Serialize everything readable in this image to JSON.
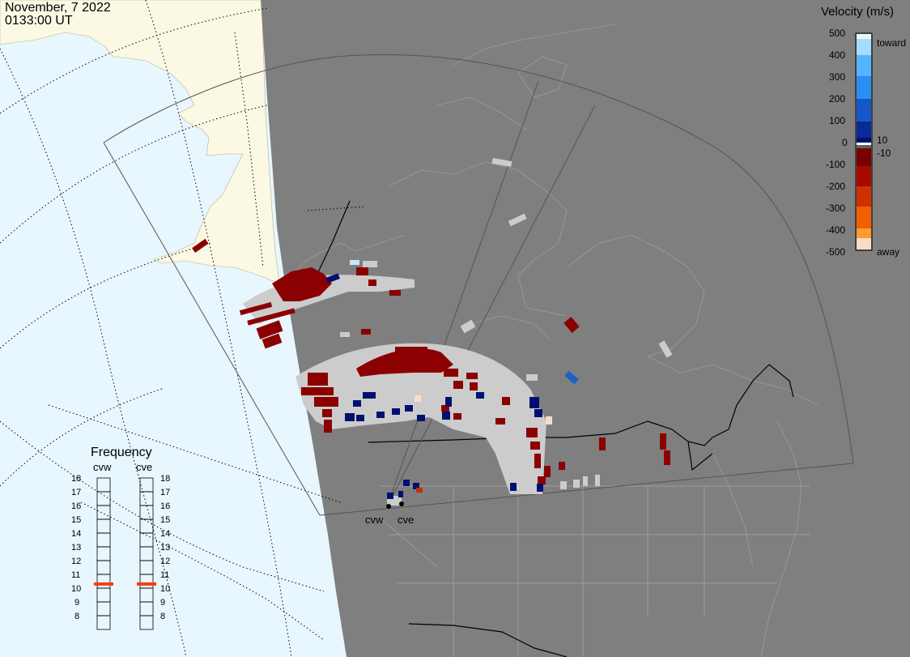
{
  "header": {
    "date": "November, 7 2022",
    "time": "0133:00 UT"
  },
  "colorbar": {
    "title": "Velocity (m/s)",
    "ticks": [
      "500",
      "400",
      "300",
      "200",
      "100",
      "0",
      "-100",
      "-200",
      "-300",
      "-400",
      "-500"
    ],
    "upper_near": "10",
    "lower_near": "-10",
    "toward_label": "toward",
    "away_label": "away",
    "colors": {
      "toward": [
        "#d8f0ff",
        "#80c8ff",
        "#3aa0f5",
        "#1e78e0",
        "#1050c0",
        "#0a2a95",
        "#001070"
      ],
      "away": [
        "#f8dcc8",
        "#ffb060",
        "#ff8c00",
        "#f06000",
        "#d03000",
        "#a80a00",
        "#7a0000"
      ]
    }
  },
  "frequency_panel": {
    "title": "Frequency",
    "radars": [
      "cvw",
      "cve"
    ],
    "scale": [
      "18",
      "17",
      "16",
      "15",
      "14",
      "13",
      "12",
      "11",
      "10",
      "9",
      "8"
    ],
    "selected": {
      "cvw": 10.8,
      "cve": 10.8
    },
    "marker_color": "#f04010"
  },
  "radar_sites": [
    "cvw",
    "cve"
  ],
  "map_colors": {
    "ocean": "#e8f6fe",
    "land_day": "#fbf8e4",
    "night": "#7f7f7f",
    "grid_line": "#9a9a9a",
    "fov_line": "#555555",
    "border_line": "#000000",
    "echo_ground": "#cccccc"
  }
}
